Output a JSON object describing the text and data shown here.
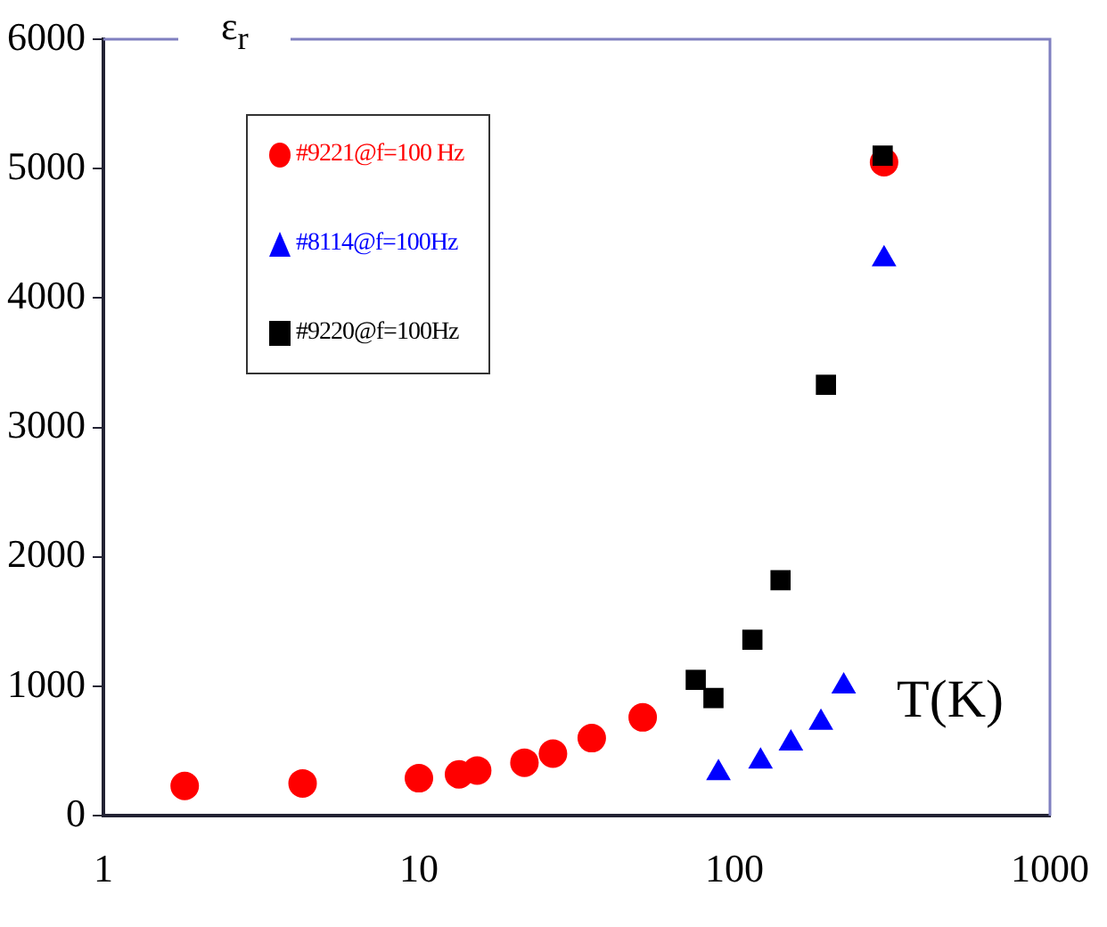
{
  "chart_data": {
    "type": "scatter",
    "ylabel": "ε$_{r}$",
    "xlabel": "T(K)",
    "log": "x",
    "xlim": [
      1,
      1000
    ],
    "xticks": [
      1,
      10,
      100,
      1000
    ],
    "ylim": [
      0,
      6000
    ],
    "yticks": [
      0,
      1000,
      2000,
      3000,
      4000,
      5000,
      6000
    ],
    "legend": "top left",
    "grid": false,
    "series": [
      {
        "name": "#9221@f=100 Hz",
        "color": "#ff0000",
        "marker": "circle",
        "x": [
          1.81,
          4.28,
          10,
          13.4,
          15.3,
          21.6,
          26.6,
          35.3,
          51.2,
          298
        ],
        "values": [
          230,
          250,
          290,
          320,
          350,
          410,
          480,
          600,
          760,
          5050
        ]
      },
      {
        "name": "#8114@f=100Hz",
        "color": "#0000ff",
        "marker": "triangle",
        "x": [
          89,
          121,
          151,
          188,
          222,
          298
        ],
        "values": [
          330,
          420,
          560,
          720,
          1000,
          4300
        ]
      },
      {
        "name": "#9220@f=100Hz",
        "color": "#000000",
        "marker": "square",
        "x": [
          75.4,
          85.8,
          114,
          140,
          195,
          295
        ],
        "values": [
          1050,
          910,
          1360,
          1820,
          3330,
          5100
        ]
      }
    ]
  }
}
